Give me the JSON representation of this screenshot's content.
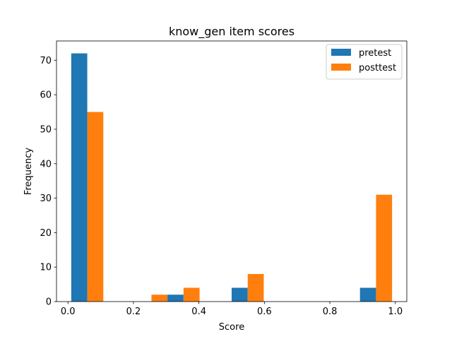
{
  "chart_data": {
    "type": "bar",
    "title": "know_gen item scores",
    "xlabel": "Score",
    "ylabel": "Frequency",
    "xlim": [
      -0.035,
      1.035
    ],
    "ylim": [
      0,
      75.6
    ],
    "xticks": [
      0.0,
      0.2,
      0.4,
      0.6,
      0.8,
      1.0
    ],
    "xtick_labels": [
      "0.0",
      "0.2",
      "0.4",
      "0.6",
      "0.8",
      "1.0"
    ],
    "yticks": [
      0,
      10,
      20,
      30,
      40,
      50,
      60,
      70
    ],
    "ytick_labels": [
      "0",
      "10",
      "20",
      "30",
      "40",
      "50",
      "60",
      "70"
    ],
    "grid": false,
    "legend_position": "top-right",
    "bin_edges": [
      0.01,
      0.108,
      0.206,
      0.304,
      0.402,
      0.5,
      0.598,
      0.696,
      0.794,
      0.892,
      0.99
    ],
    "series": [
      {
        "name": "pretest",
        "color": "#1f77b4",
        "values": [
          72,
          0,
          0,
          2,
          0,
          4,
          0,
          0,
          0,
          4
        ]
      },
      {
        "name": "posttest",
        "color": "#ff7f0e",
        "values": [
          55,
          0,
          2,
          4,
          0,
          8,
          0,
          0,
          0,
          31
        ]
      }
    ]
  }
}
